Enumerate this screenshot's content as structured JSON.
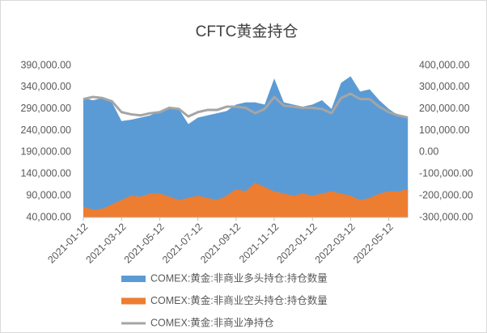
{
  "chart_data": {
    "type": "area",
    "title": "CFTC黄金持仓",
    "categories": [
      "2021-01-12",
      null,
      null,
      null,
      "2021-03-12",
      null,
      null,
      null,
      "2021-05-12",
      null,
      null,
      null,
      "2021-07-12",
      null,
      null,
      null,
      "2021-09-12",
      null,
      null,
      null,
      "2021-11-12",
      null,
      null,
      null,
      "2022-01-12",
      null,
      null,
      null,
      "2022-03-12",
      null,
      null,
      null,
      "2022-05-12",
      null,
      null
    ],
    "series": [
      {
        "name": "COMEX:黄金:非商业多头持仓:持仓数量",
        "color": "#5b9bd5",
        "type": "area",
        "values": [
          315000,
          310000,
          315000,
          305000,
          262000,
          265000,
          270000,
          275000,
          285000,
          290000,
          290000,
          255000,
          270000,
          275000,
          280000,
          285000,
          300000,
          305000,
          305000,
          300000,
          360000,
          305000,
          300000,
          295000,
          300000,
          310000,
          290000,
          350000,
          365000,
          330000,
          335000,
          310000,
          290000,
          275000,
          270000
        ]
      },
      {
        "name": "COMEX:黄金:非商业空头持仓:持仓数量",
        "color": "#ed7d31",
        "type": "area",
        "values": [
          65000,
          58000,
          60000,
          70000,
          80000,
          90000,
          88000,
          95000,
          95000,
          88000,
          80000,
          85000,
          90000,
          85000,
          80000,
          90000,
          105000,
          100000,
          120000,
          110000,
          100000,
          95000,
          90000,
          95000,
          90000,
          95000,
          100000,
          95000,
          90000,
          80000,
          85000,
          95000,
          100000,
          100000,
          105000
        ]
      },
      {
        "name": "COMEX:黄金:非商业净持仓",
        "color": "#a5a5a5",
        "type": "line",
        "axis": "y2",
        "values": [
          245000,
          255000,
          250000,
          235000,
          185000,
          175000,
          170000,
          180000,
          185000,
          205000,
          200000,
          165000,
          185000,
          195000,
          195000,
          210000,
          210000,
          205000,
          180000,
          200000,
          255000,
          215000,
          210000,
          205000,
          205000,
          200000,
          180000,
          250000,
          270000,
          245000,
          245000,
          210000,
          185000,
          170000,
          160000
        ]
      }
    ],
    "ylim": [
      40000,
      390000
    ],
    "yticks": [
      {
        "value": 40000,
        "label": "40,000.00"
      },
      {
        "value": 90000,
        "label": "90,000.00"
      },
      {
        "value": 140000,
        "label": "140,000.00"
      },
      {
        "value": 190000,
        "label": "190,000.00"
      },
      {
        "value": 240000,
        "label": "240,000.00"
      },
      {
        "value": 290000,
        "label": "290,000.00"
      },
      {
        "value": 340000,
        "label": "340,000.00"
      },
      {
        "value": 390000,
        "label": "390,000.00"
      }
    ],
    "y2lim": [
      -300000,
      400000
    ],
    "y2ticks": [
      {
        "value": -300000,
        "label": "-300,000.00"
      },
      {
        "value": -200000,
        "label": "-200,000.00"
      },
      {
        "value": -100000,
        "label": "-100,000.00"
      },
      {
        "value": 0,
        "label": "0.00"
      },
      {
        "value": 100000,
        "label": "100,000.00"
      },
      {
        "value": 200000,
        "label": "200,000.00"
      },
      {
        "value": 300000,
        "label": "300,000.00"
      },
      {
        "value": 400000,
        "label": "400,000.00"
      }
    ],
    "grid": false
  }
}
